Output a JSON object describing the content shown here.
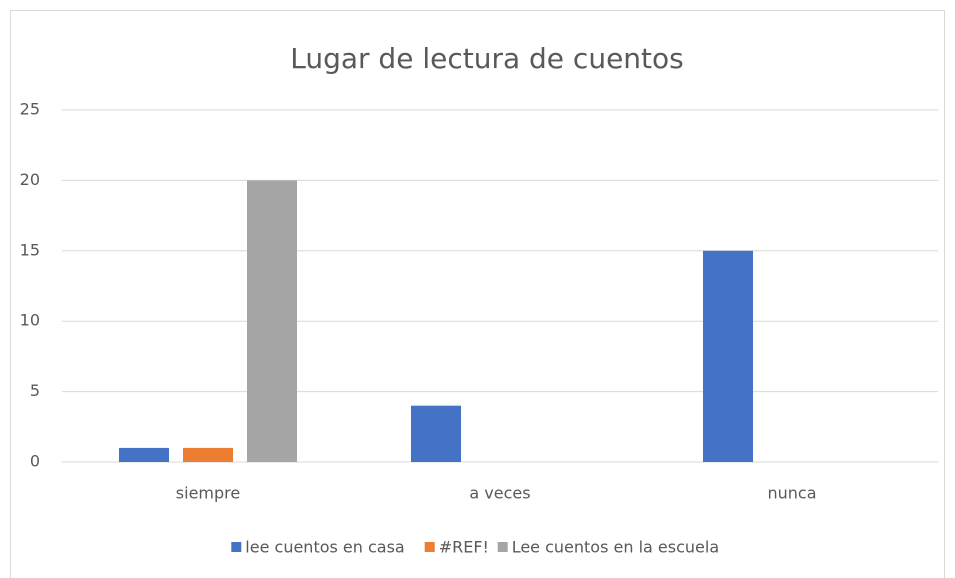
{
  "chart_data": {
    "type": "bar",
    "title": "Lugar de lectura de cuentos",
    "categories": [
      "siempre",
      "a veces",
      "nunca"
    ],
    "series": [
      {
        "name": "lee cuentos en casa",
        "color": "#4472c4",
        "values": [
          1,
          4,
          15
        ]
      },
      {
        "name": "#REF!",
        "color": "#ed7d31",
        "values": [
          1,
          null,
          null
        ]
      },
      {
        "name": "Lee cuentos en la escuela",
        "color": "#a5a5a5",
        "values": [
          20,
          null,
          null
        ]
      }
    ],
    "ylim": [
      0,
      25
    ],
    "yticks": [
      0,
      5,
      10,
      15,
      20,
      25
    ],
    "grid": true,
    "legend": "bottom"
  }
}
